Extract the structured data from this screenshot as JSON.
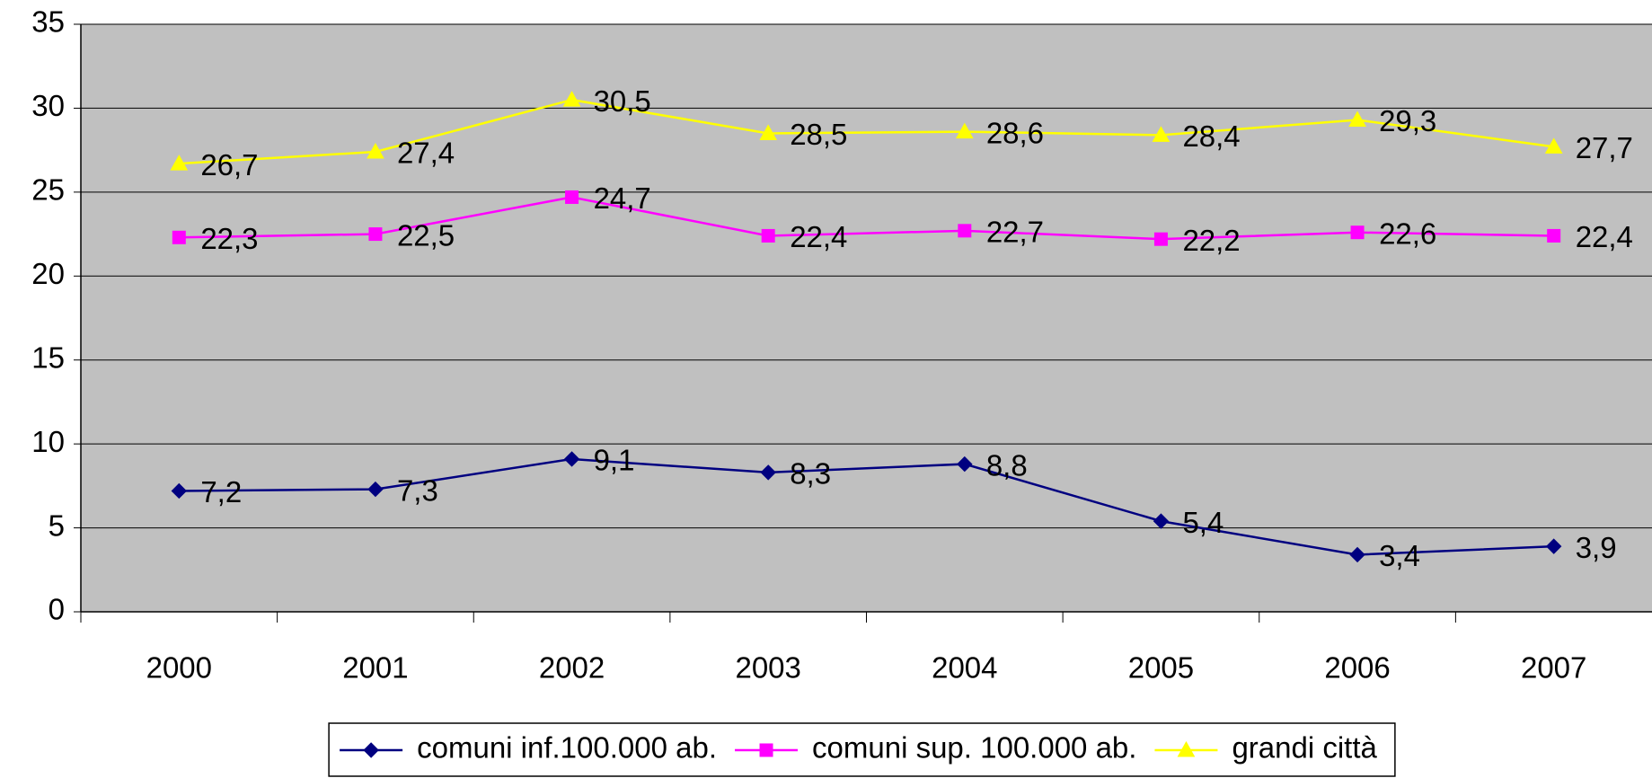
{
  "chart_data": {
    "type": "line",
    "categories": [
      "2000",
      "2001",
      "2002",
      "2003",
      "2004",
      "2005",
      "2006",
      "2007"
    ],
    "series": [
      {
        "name": "comuni inf.100.000 ab.",
        "color": "#000080",
        "marker": "diamond",
        "values": [
          7.2,
          7.3,
          9.1,
          8.3,
          8.8,
          5.4,
          3.4,
          3.9
        ],
        "value_labels": [
          "7,2",
          "7,3",
          "9,1",
          "8,3",
          "8,8",
          "5,4",
          "3,4",
          "3,9"
        ]
      },
      {
        "name": "comuni sup. 100.000 ab.",
        "color": "#ff00ff",
        "marker": "square",
        "values": [
          22.3,
          22.5,
          24.7,
          22.4,
          22.7,
          22.2,
          22.6,
          22.4
        ],
        "value_labels": [
          "22,3",
          "22,5",
          "24,7",
          "22,4",
          "22,7",
          "22,2",
          "22,6",
          "22,4"
        ]
      },
      {
        "name": "grandi città",
        "color": "#ffff00",
        "marker": "triangle",
        "values": [
          26.7,
          27.4,
          30.5,
          28.5,
          28.6,
          28.4,
          29.3,
          27.7
        ],
        "value_labels": [
          "26,7",
          "27,4",
          "30,5",
          "28,5",
          "28,6",
          "28,4",
          "29,3",
          "27,7"
        ]
      }
    ],
    "ylim": [
      0,
      35
    ],
    "yticks": [
      0,
      5,
      10,
      15,
      20,
      25,
      30,
      35
    ],
    "grid": true,
    "legend": "bottom"
  }
}
